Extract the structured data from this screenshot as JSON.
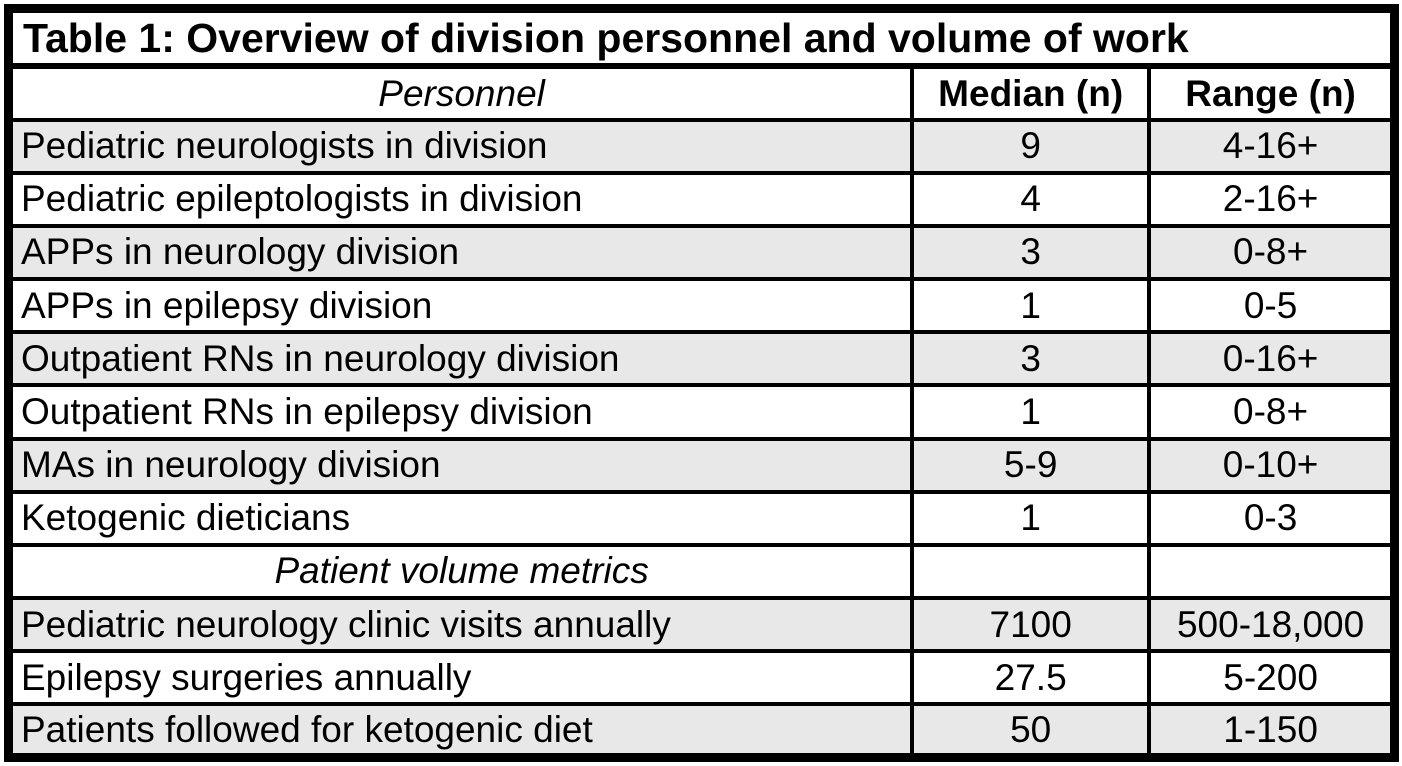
{
  "table": {
    "title": "Table 1: Overview of division personnel and volume of work",
    "columns": {
      "personnel": "Personnel",
      "median": "Median (n)",
      "range": "Range (n)"
    },
    "rows": [
      {
        "label": "Pediatric neurologists in division",
        "median": "9",
        "range": "4-16+"
      },
      {
        "label": "Pediatric epileptologists in division",
        "median": "4",
        "range": "2-16+"
      },
      {
        "label": "APPs in neurology division",
        "median": "3",
        "range": "0-8+"
      },
      {
        "label": "APPs in epilepsy division",
        "median": "1",
        "range": "0-5"
      },
      {
        "label": "Outpatient RNs in neurology division",
        "median": "3",
        "range": "0-16+"
      },
      {
        "label": "Outpatient RNs in epilepsy division",
        "median": "1",
        "range": "0-8+"
      },
      {
        "label": "MAs in neurology division",
        "median": "5-9",
        "range": "0-10+"
      },
      {
        "label": "Ketogenic dieticians",
        "median": "1",
        "range": "0-3"
      },
      {
        "label": "Patient volume metrics",
        "median": "",
        "range": ""
      },
      {
        "label": "Pediatric neurology clinic visits annually",
        "median": "7100",
        "range": "500-18,000"
      },
      {
        "label": "Epilepsy surgeries annually",
        "median": "27.5",
        "range": "5-200"
      },
      {
        "label": "Patients followed for ketogenic diet",
        "median": "50",
        "range": "1-150"
      }
    ]
  },
  "colors": {
    "border": "#000000",
    "row_shade": "#e8e8e8",
    "background": "#ffffff",
    "text": "#000000"
  }
}
